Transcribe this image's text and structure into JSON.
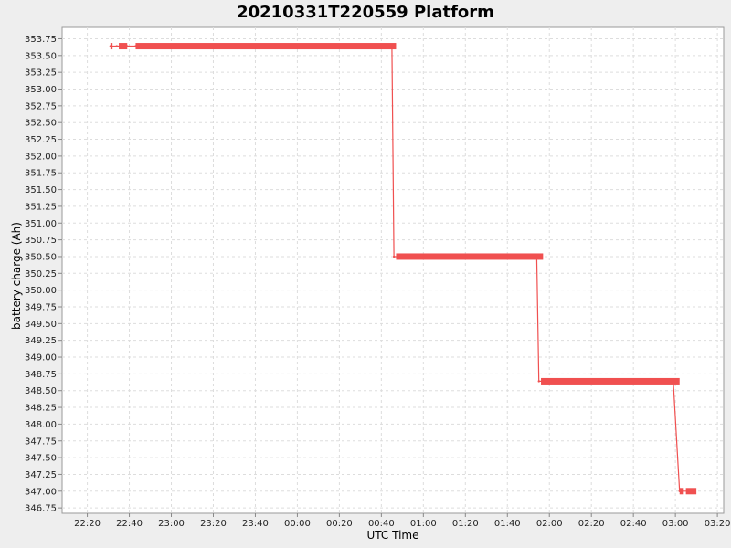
{
  "chart_data": {
    "type": "line",
    "title": "20210331T220559 Platform",
    "xlabel": "UTC Time",
    "ylabel": "battery charge (Ah)",
    "x_ticks": [
      "22:20",
      "22:40",
      "23:00",
      "23:20",
      "23:40",
      "00:00",
      "00:20",
      "00:40",
      "01:00",
      "01:20",
      "01:40",
      "02:00",
      "02:20",
      "02:40",
      "03:00",
      "03:20"
    ],
    "y_ticks": [
      "346.75",
      "347.00",
      "347.25",
      "347.50",
      "347.75",
      "348.00",
      "348.25",
      "348.50",
      "348.75",
      "349.00",
      "349.25",
      "349.50",
      "349.75",
      "350.00",
      "350.25",
      "350.50",
      "350.75",
      "351.00",
      "351.25",
      "351.50",
      "351.75",
      "352.00",
      "352.25",
      "352.50",
      "352.75",
      "353.00",
      "353.25",
      "353.50",
      "353.75"
    ],
    "ylim": [
      346.67,
      353.92
    ],
    "xlim": [
      "22:08",
      "03:23"
    ],
    "grid": true,
    "color": "#f05050",
    "series": [
      {
        "values": [
          {
            "x": "22:31",
            "y": 353.64
          },
          {
            "x": "22:34",
            "y": 353.64
          },
          {
            "x": "22:39",
            "y": 353.64
          },
          {
            "x": "22:43",
            "y": 353.64
          },
          {
            "x": "00:45",
            "y": 353.64
          },
          {
            "x": "00:46",
            "y": 350.5
          },
          {
            "x": "01:55",
            "y": 350.5
          },
          {
            "x": "01:54",
            "y": 350.5
          },
          {
            "x": "01:55",
            "y": 348.64
          },
          {
            "x": "02:59",
            "y": 348.64
          },
          {
            "x": "03:02",
            "y": 347.0
          },
          {
            "x": "03:09",
            "y": 347.0
          }
        ]
      }
    ],
    "segments": [
      {
        "x_start": "22:31",
        "x_end": "22:32",
        "y": 353.64
      },
      {
        "x_start": "22:35",
        "x_end": "22:39",
        "y": 353.64
      },
      {
        "x_start": "22:43",
        "x_end": "00:47",
        "y": 353.64
      },
      {
        "x_start": "00:47",
        "x_end": "01:57",
        "y": 350.5
      },
      {
        "x_start": "01:56",
        "x_end": "03:02",
        "y": 348.64
      },
      {
        "x_start": "03:02",
        "x_end": "03:04",
        "y": 347.0
      },
      {
        "x_start": "03:05",
        "x_end": "03:10",
        "y": 347.0
      }
    ]
  }
}
